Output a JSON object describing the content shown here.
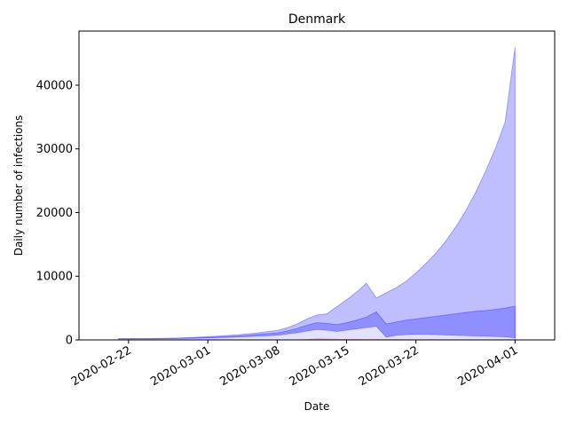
{
  "chart_data": {
    "type": "area",
    "title": "Denmark",
    "xlabel": "Date",
    "ylabel": "Daily number of infections",
    "xlim": [
      "2020-02-17",
      "2020-04-05"
    ],
    "ylim": [
      0,
      48500
    ],
    "x_ticks": [
      "2020-02-22",
      "2020-03-01",
      "2020-03-08",
      "2020-03-15",
      "2020-03-22",
      "2020-04-01"
    ],
    "y_ticks": [
      0,
      10000,
      20000,
      30000,
      40000
    ],
    "y_tick_labels": [
      "0",
      "10000",
      "20000",
      "30000",
      "40000"
    ],
    "grid": false,
    "legend": "none",
    "colors": {
      "band_fill": "#0000ff",
      "band_outer_opacity": 0.25,
      "band_inner_opacity": 0.25,
      "observed": "#ff0000"
    },
    "x": [
      "2020-02-21",
      "2020-02-24",
      "2020-02-27",
      "2020-03-01",
      "2020-03-04",
      "2020-03-06",
      "2020-03-08",
      "2020-03-09",
      "2020-03-10",
      "2020-03-11",
      "2020-03-12",
      "2020-03-13",
      "2020-03-14",
      "2020-03-15",
      "2020-03-16",
      "2020-03-17",
      "2020-03-18",
      "2020-03-19",
      "2020-03-20",
      "2020-03-21",
      "2020-03-22",
      "2020-03-23",
      "2020-03-24",
      "2020-03-25",
      "2020-03-26",
      "2020-03-27",
      "2020-03-28",
      "2020-03-29",
      "2020-03-30",
      "2020-03-31",
      "2020-04-01"
    ],
    "series": [
      {
        "role": "outer_upper",
        "values": [
          200,
          200,
          300,
          500,
          800,
          1100,
          1500,
          1900,
          2500,
          3300,
          3900,
          4100,
          5200,
          6300,
          7500,
          8900,
          6600,
          7400,
          8200,
          9200,
          10500,
          12000,
          13600,
          15500,
          17700,
          20200,
          23100,
          26400,
          30000,
          34200,
          46000
        ]
      },
      {
        "role": "inner_upper",
        "values": [
          150,
          180,
          250,
          400,
          600,
          850,
          1100,
          1400,
          1800,
          2300,
          2700,
          2600,
          2400,
          2700,
          3100,
          3600,
          4400,
          2500,
          2800,
          3100,
          3300,
          3500,
          3700,
          3900,
          4100,
          4300,
          4500,
          4600,
          4800,
          5000,
          5300
        ]
      },
      {
        "role": "inner_lower",
        "values": [
          100,
          120,
          180,
          280,
          420,
          560,
          700,
          900,
          1100,
          1350,
          1600,
          1500,
          1300,
          1500,
          1700,
          1900,
          2100,
          400,
          700,
          800,
          850,
          850,
          800,
          750,
          700,
          650,
          600,
          550,
          500,
          450,
          300
        ]
      },
      {
        "role": "outer_lower",
        "values": [
          0,
          0,
          0,
          0,
          0,
          0,
          0,
          0,
          0,
          0,
          0,
          0,
          0,
          0,
          0,
          0,
          0,
          0,
          0,
          0,
          0,
          0,
          0,
          0,
          0,
          0,
          0,
          0,
          0,
          0,
          0
        ]
      },
      {
        "role": "observed",
        "values": [
          0,
          0,
          0,
          0,
          0,
          0,
          0,
          0,
          0,
          50,
          150,
          120,
          80,
          60,
          50,
          40,
          30,
          20,
          30,
          20,
          10,
          10,
          10,
          0,
          0,
          0,
          0,
          0,
          0,
          0,
          0
        ]
      }
    ]
  }
}
